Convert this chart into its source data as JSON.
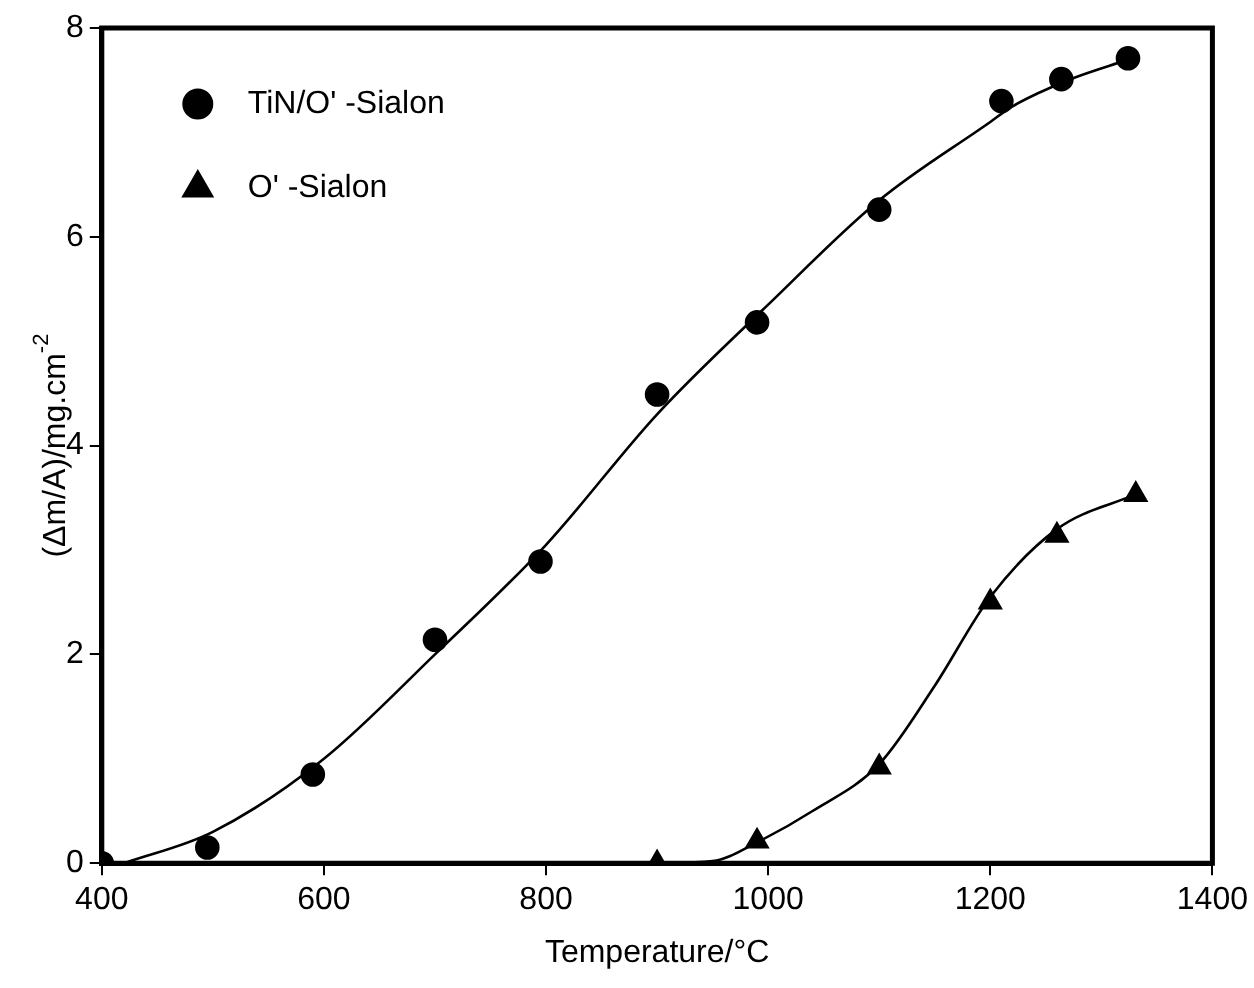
{
  "chart_data": {
    "type": "scatter",
    "xlabel": "Temperature/°C",
    "ylabel": "(Δm/A)/mg.cm$^{-2}$",
    "xlim": [
      400,
      1400
    ],
    "xticks": [
      400,
      600,
      800,
      1000,
      1200,
      1400
    ],
    "ylim": [
      0,
      8
    ],
    "yticks": [
      0,
      2,
      4,
      6,
      8
    ],
    "grid": false,
    "legend": "top left",
    "series": [
      {
        "name": "TiN/O' -Sialon",
        "color": "#000000",
        "marker": "circle",
        "x": [
          400,
          495,
          590,
          700,
          795,
          900,
          990,
          1100,
          1210,
          1264,
          1324
        ],
        "values": [
          0,
          0.15,
          0.85,
          2.14,
          2.89,
          4.49,
          5.18,
          6.26,
          7.3,
          7.51,
          7.71
        ]
      },
      {
        "name": "O' -Sialon",
        "color": "#000000",
        "marker": "triangle",
        "x": [
          900,
          990,
          1100,
          1200,
          1260,
          1331
        ],
        "values": [
          0,
          0.21,
          0.92,
          2.5,
          3.14,
          3.53
        ]
      },
      {
        "type": "line",
        "color": "#000000",
        "marker": "none",
        "x": [
          420,
          500,
          600,
          700,
          800,
          900,
          1000,
          1100,
          1200,
          1220,
          1270,
          1325
        ],
        "values": [
          0,
          0.3,
          1.0,
          2.0,
          3.05,
          4.3,
          5.35,
          6.35,
          7.1,
          7.25,
          7.5,
          7.7
        ]
      },
      {
        "type": "line",
        "color": "#000000",
        "marker": "none",
        "x": [
          900,
          950,
          990,
          1040,
          1100,
          1150,
          1200,
          1260,
          1330
        ],
        "values": [
          0,
          0.02,
          0.2,
          0.5,
          0.95,
          1.7,
          2.55,
          3.2,
          3.53
        ]
      }
    ]
  }
}
